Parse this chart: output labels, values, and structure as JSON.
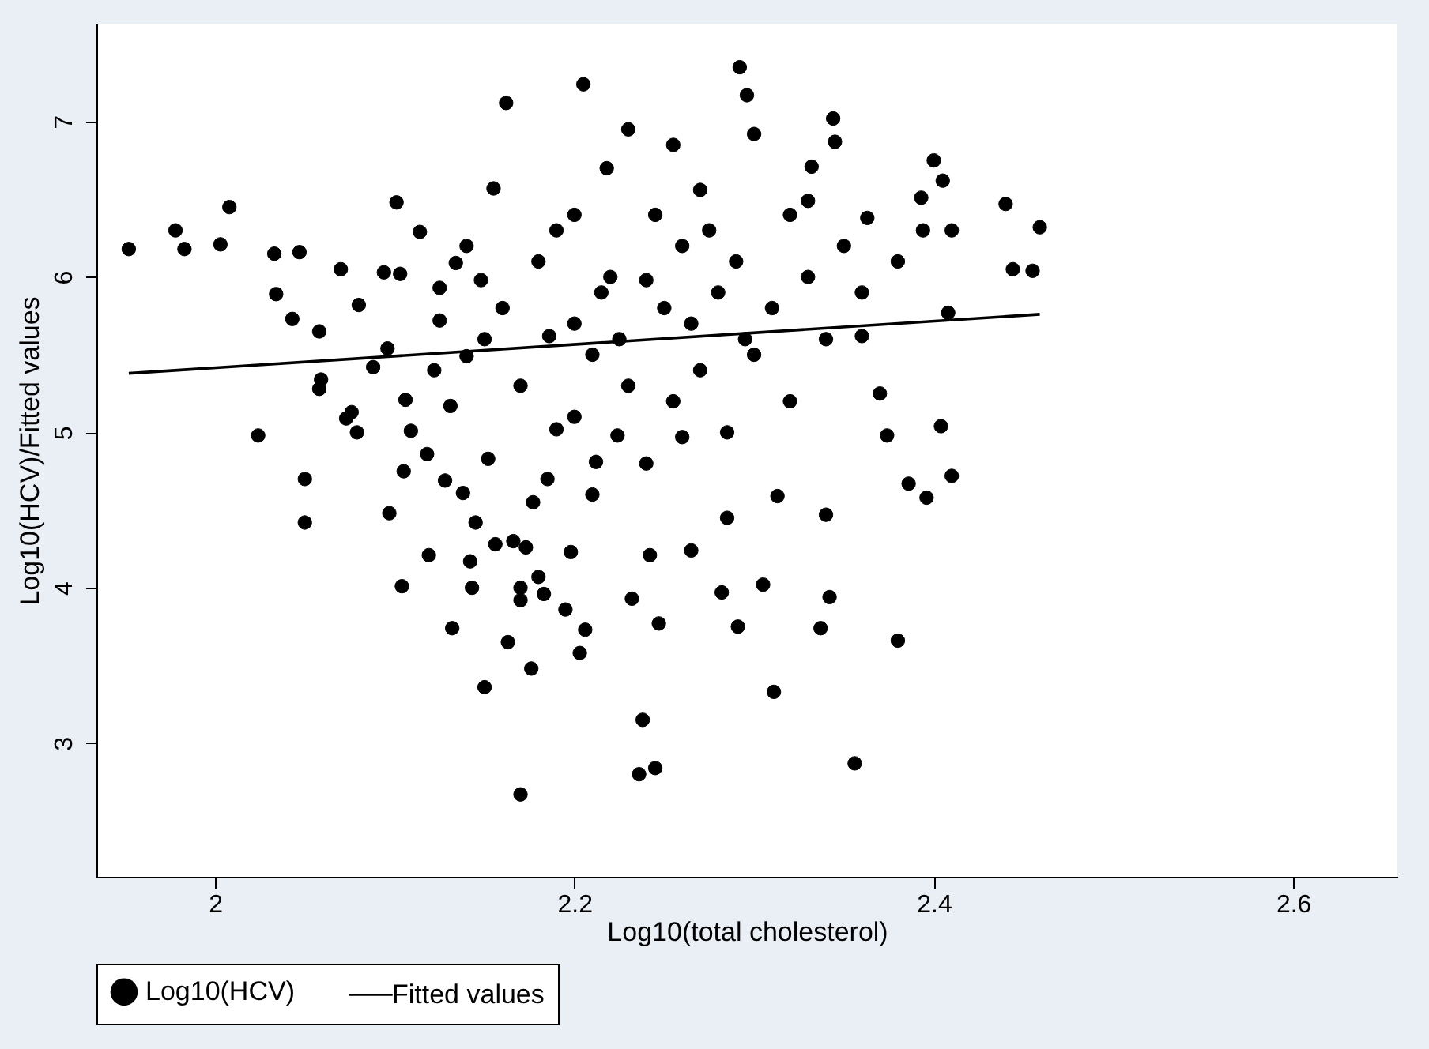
{
  "chart_data": {
    "type": "scatter",
    "xlabel": "Log10(total cholesterol)",
    "ylabel": "Log10(HCV)/Fitted values",
    "xlim": [
      1.934,
      2.658
    ],
    "ylim": [
      2.14,
      7.63
    ],
    "xticks": [
      2,
      2.2,
      2.4,
      2.6
    ],
    "yticks": [
      3,
      4,
      5,
      6,
      7
    ],
    "grid": false,
    "legend": "bottom",
    "series": [
      {
        "name": "Log10(HCV)",
        "type": "scatter",
        "marker": "circle",
        "color": "#000000",
        "x": [
          1.952,
          1.978,
          1.983,
          2.003,
          2.008,
          2.024,
          2.033,
          2.034,
          2.043,
          2.047,
          2.05,
          2.05,
          2.058,
          2.059,
          2.058,
          2.07,
          2.073,
          2.076,
          2.079,
          2.08,
          2.088,
          2.094,
          2.096,
          2.097,
          2.101,
          2.103,
          2.104,
          2.105,
          2.106,
          2.109,
          2.114,
          2.118,
          2.119,
          2.122,
          2.125,
          2.128,
          2.131,
          2.132,
          2.134,
          2.138,
          2.14,
          2.142,
          2.143,
          2.145,
          2.148,
          2.15,
          2.152,
          2.155,
          2.156,
          2.162,
          2.163,
          2.166,
          2.17,
          2.17,
          2.173,
          2.176,
          2.177,
          2.18,
          2.183,
          2.186,
          2.19,
          2.195,
          2.198,
          2.203,
          2.205,
          2.206,
          2.212,
          2.218,
          2.224,
          2.23,
          2.232,
          2.236,
          2.238,
          2.24,
          2.242,
          2.245,
          2.247,
          2.255,
          2.26,
          2.265,
          2.27,
          2.282,
          2.285,
          2.291,
          2.292,
          2.296,
          2.3,
          2.305,
          2.311,
          2.313,
          2.33,
          2.332,
          2.337,
          2.34,
          2.342,
          2.344,
          2.345,
          2.356,
          2.36,
          2.363,
          2.37,
          2.374,
          2.38,
          2.386,
          2.393,
          2.394,
          2.396,
          2.4,
          2.404,
          2.405,
          2.408,
          2.41,
          2.41,
          2.44,
          2.444,
          2.455,
          2.459,
          2.17,
          2.125,
          2.16,
          2.18,
          2.2,
          2.21,
          2.22,
          2.23,
          2.25,
          2.26,
          2.27,
          2.28,
          2.29,
          2.3,
          2.31,
          2.32,
          2.33,
          2.34,
          2.35,
          2.19,
          2.2,
          2.215,
          2.225,
          2.245,
          2.255,
          2.265,
          2.275,
          2.285,
          2.295,
          2.2,
          2.21,
          2.24,
          2.15,
          2.14,
          2.17,
          2.185,
          2.32,
          2.36,
          2.38
        ],
        "values": [
          6.18,
          6.3,
          6.18,
          6.21,
          6.45,
          4.98,
          6.15,
          5.89,
          5.73,
          6.16,
          4.7,
          4.42,
          5.65,
          5.34,
          5.28,
          6.05,
          5.09,
          5.13,
          5.0,
          5.82,
          5.42,
          6.03,
          5.54,
          4.48,
          6.48,
          6.02,
          4.01,
          4.75,
          5.21,
          5.01,
          6.29,
          4.86,
          4.21,
          5.4,
          5.93,
          4.69,
          5.17,
          3.74,
          6.09,
          4.61,
          5.49,
          4.17,
          4.0,
          4.42,
          5.98,
          3.36,
          4.83,
          6.57,
          4.28,
          7.12,
          3.65,
          4.3,
          4.0,
          3.92,
          4.26,
          3.48,
          4.55,
          4.07,
          3.96,
          5.62,
          5.02,
          3.86,
          4.23,
          3.58,
          7.24,
          3.73,
          4.81,
          6.7,
          4.98,
          6.95,
          3.93,
          2.8,
          3.15,
          5.98,
          4.21,
          2.84,
          3.77,
          6.85,
          4.97,
          4.24,
          6.56,
          3.97,
          4.45,
          3.75,
          7.35,
          7.17,
          6.92,
          4.02,
          3.33,
          4.59,
          6.49,
          6.71,
          3.74,
          4.47,
          3.94,
          7.02,
          6.87,
          2.87,
          5.62,
          6.38,
          5.25,
          4.98,
          3.66,
          4.67,
          6.51,
          6.3,
          4.58,
          6.75,
          5.04,
          6.62,
          5.77,
          4.72,
          6.3,
          6.47,
          6.05,
          6.04,
          6.32,
          2.67,
          5.72,
          5.8,
          6.1,
          5.7,
          5.5,
          6.0,
          5.3,
          5.8,
          6.2,
          5.4,
          5.9,
          6.1,
          5.5,
          5.8,
          5.2,
          6.0,
          5.6,
          6.2,
          6.3,
          6.4,
          5.9,
          5.6,
          6.4,
          5.2,
          5.7,
          6.3,
          5.0,
          5.6,
          5.1,
          4.6,
          4.8,
          5.6,
          6.2,
          5.3,
          4.7,
          6.4,
          5.9,
          6.1
        ]
      },
      {
        "name": "Fitted values",
        "type": "line",
        "color": "#000000",
        "line_style": "solid",
        "x": [
          1.952,
          2.459
        ],
        "values": [
          5.38,
          5.76
        ]
      }
    ]
  }
}
